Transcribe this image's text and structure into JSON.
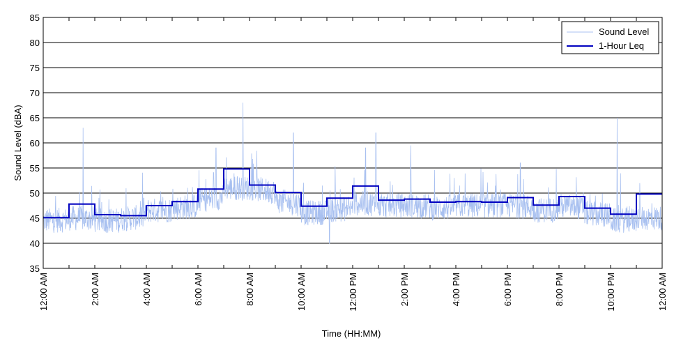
{
  "chart_data": {
    "type": "line",
    "xlabel": "Time (HH:MM)",
    "ylabel": "Sound Level (dBA)",
    "ylim": [
      35,
      85
    ],
    "y_ticks": [
      35,
      40,
      45,
      50,
      55,
      60,
      65,
      70,
      75,
      80,
      85
    ],
    "xlim_hours": [
      0,
      24
    ],
    "x_ticks": [
      {
        "hour": 0,
        "label": "12:00 AM"
      },
      {
        "hour": 2,
        "label": "2:00 AM"
      },
      {
        "hour": 4,
        "label": "4:00 AM"
      },
      {
        "hour": 6,
        "label": "6:00 AM"
      },
      {
        "hour": 8,
        "label": "8:00 AM"
      },
      {
        "hour": 10,
        "label": "10:00 AM"
      },
      {
        "hour": 12,
        "label": "12:00 PM"
      },
      {
        "hour": 14,
        "label": "2:00 PM"
      },
      {
        "hour": 16,
        "label": "4:00 PM"
      },
      {
        "hour": 18,
        "label": "6:00 PM"
      },
      {
        "hour": 20,
        "label": "8:00 PM"
      },
      {
        "hour": 22,
        "label": "10:00 PM"
      },
      {
        "hour": 24,
        "label": "12:00 AM"
      }
    ],
    "grid": "horizontal",
    "legend_position": "top-right",
    "series": [
      {
        "name": "Sound Level",
        "color": "#a8c0f0",
        "style": "thin-line",
        "hourly_typical": [
          44.5,
          45,
          44.5,
          44.8,
          46.5,
          47,
          48.5,
          51,
          51,
          48.5,
          46,
          46.5,
          48,
          47.5,
          47.5,
          47,
          47.5,
          47.5,
          47.5,
          46.5,
          47.5,
          46,
          44.5,
          45
        ],
        "peaks": [
          {
            "hour": 1.55,
            "value": 63
          },
          {
            "hour": 3.9,
            "value": 49
          },
          {
            "hour": 6.7,
            "value": 59
          },
          {
            "hour": 7.75,
            "value": 68
          },
          {
            "hour": 9.7,
            "value": 62
          },
          {
            "hour": 11.1,
            "value": 40
          },
          {
            "hour": 12.5,
            "value": 59
          },
          {
            "hour": 12.9,
            "value": 62
          },
          {
            "hour": 14.25,
            "value": 59.5
          },
          {
            "hour": 18.5,
            "value": 56
          },
          {
            "hour": 22.25,
            "value": 65
          }
        ]
      },
      {
        "name": "1-Hour Leq",
        "color": "#0000c0",
        "style": "step",
        "values": [
          45.1,
          47.8,
          45.7,
          45.5,
          47.5,
          48.3,
          50.8,
          54.8,
          51.6,
          50.1,
          47.4,
          49.0,
          51.4,
          48.6,
          48.8,
          48.2,
          48.3,
          48.2,
          49.1,
          47.6,
          49.3,
          47.0,
          45.8,
          49.8
        ]
      }
    ]
  }
}
